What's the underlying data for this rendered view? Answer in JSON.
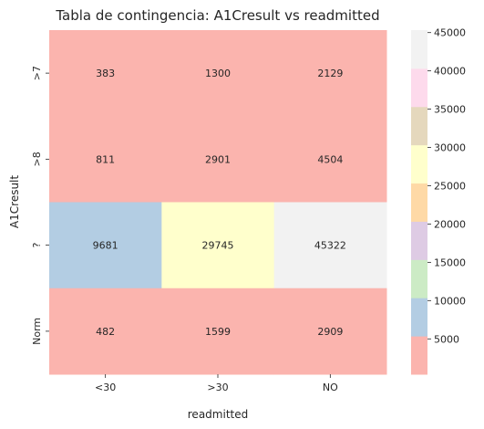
{
  "chart_data": {
    "type": "heatmap",
    "title": "Tabla de contingencia: A1Cresult vs readmitted",
    "xlabel": "readmitted",
    "ylabel": "A1Cresult",
    "x_categories": [
      "<30",
      ">30",
      "NO"
    ],
    "y_categories": [
      ">7",
      ">8",
      "?",
      "Norm"
    ],
    "values": [
      [
        383,
        1300,
        2129
      ],
      [
        811,
        2901,
        4504
      ],
      [
        9681,
        29745,
        45322
      ],
      [
        482,
        1599,
        2909
      ]
    ],
    "colorbar": {
      "colormap": "Pastel1",
      "min": 383,
      "max": 45322,
      "ticks": [
        5000,
        10000,
        15000,
        20000,
        25000,
        30000,
        35000,
        40000,
        45000
      ],
      "colors": [
        "#fbb4ae",
        "#b3cde3",
        "#ccebc5",
        "#decbe4",
        "#fed9a6",
        "#ffffcc",
        "#e5d8bd",
        "#fddaec",
        "#f2f2f2"
      ]
    }
  }
}
